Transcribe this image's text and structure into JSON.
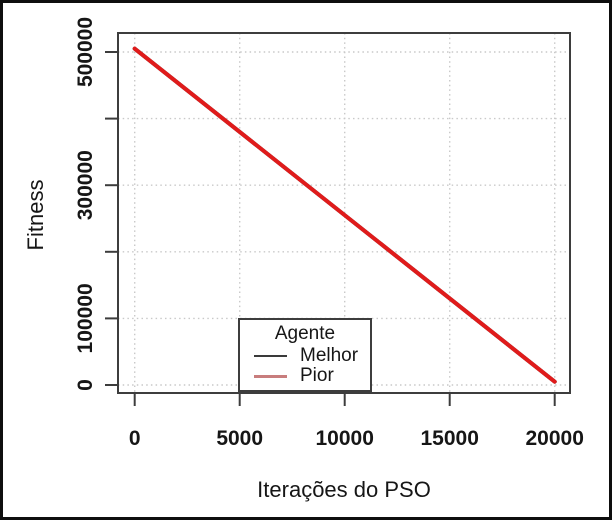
{
  "axes": {
    "xlabel": "Iterações do PSO",
    "ylabel": "Fitness"
  },
  "legend": {
    "title": "Agente",
    "items": [
      {
        "label": "Melhor",
        "swatch_color": "#3a3a3a"
      },
      {
        "label": "Pior",
        "swatch_color": "#c87d7d"
      }
    ]
  },
  "colors": {
    "line": "#e01b1b",
    "grid": "#c9c9c9",
    "axis": "#3d3d3d",
    "text": "#161616",
    "frame": "#0e0e0e",
    "background": "#ffffff"
  },
  "chart_data": {
    "type": "line",
    "title": "",
    "xlabel": "Iterações do PSO",
    "ylabel": "Fitness",
    "xlim": [
      0,
      20000
    ],
    "ylim": [
      0,
      500000
    ],
    "grid": "dotted",
    "legend_position": "bottom-center-inside",
    "x_ticks": [
      {
        "value": 0,
        "label": "0"
      },
      {
        "value": 5000,
        "label": "5000"
      },
      {
        "value": 10000,
        "label": "10000"
      },
      {
        "value": 15000,
        "label": "15000"
      },
      {
        "value": 20000,
        "label": "20000"
      }
    ],
    "y_ticks": [
      {
        "value": 0,
        "label": "0"
      },
      {
        "value": 100000,
        "label": "100000"
      },
      {
        "value": 200000,
        "label": ""
      },
      {
        "value": 300000,
        "label": "300000"
      },
      {
        "value": 400000,
        "label": ""
      },
      {
        "value": 500000,
        "label": "500000"
      }
    ],
    "series": [
      {
        "name": "Melhor",
        "color": "#3a3a3a",
        "x": [
          0,
          20000
        ],
        "y": [
          505000,
          5000
        ]
      },
      {
        "name": "Pior",
        "color": "#e01b1b",
        "x": [
          0,
          20000
        ],
        "y": [
          505000,
          5000
        ]
      }
    ]
  }
}
